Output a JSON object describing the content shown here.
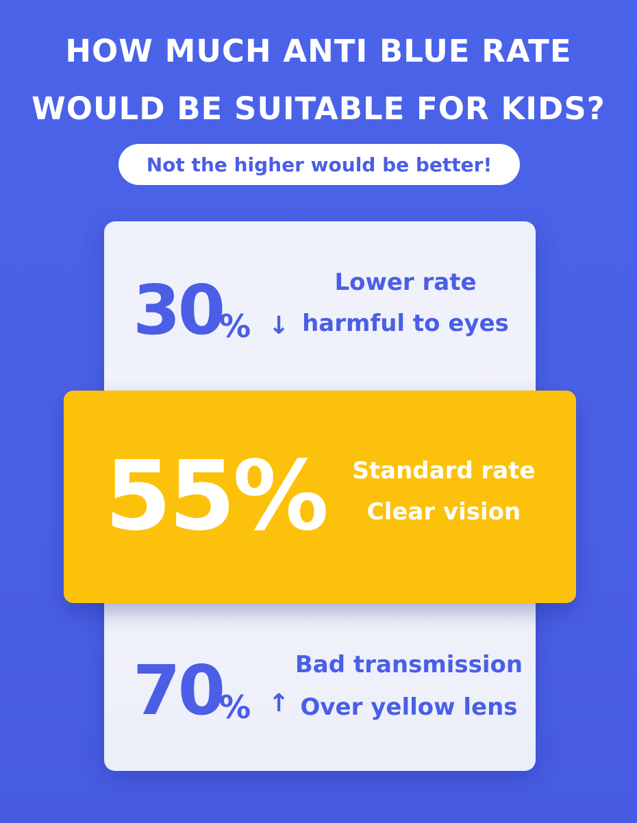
{
  "header": {
    "title_line1": "HOW MUCH ANTI BLUE RATE",
    "title_line2": "WOULD BE SUITABLE FOR KIDS?",
    "subtitle": "Not the higher would be better!"
  },
  "options": {
    "low": {
      "number": "30",
      "percent_sign": "%",
      "arrow": "↓",
      "line1": "Lower rate",
      "line2": "harmful to eyes"
    },
    "standard": {
      "value": "55%",
      "line1": "Standard rate",
      "line2": "Clear vision"
    },
    "high": {
      "number": "70",
      "percent_sign": "%",
      "arrow": "↑",
      "line1": "Bad transmission",
      "line2": "Over yellow lens"
    }
  },
  "colors": {
    "background": "#4a60e6",
    "accent_blue": "#4a5ee6",
    "highlight_yellow": "#fcc20b",
    "card": "#f0f2fb"
  }
}
